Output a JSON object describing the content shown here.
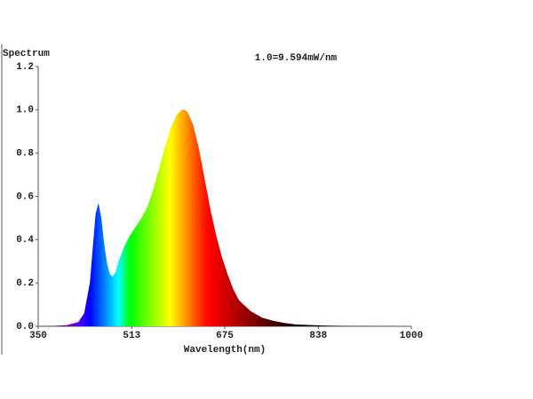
{
  "chart_data": {
    "type": "area",
    "title": "Spectrum",
    "annotation": "1.0=9.594mW/nm",
    "x_label": "Wavelength(nm)",
    "x": [
      350,
      380,
      400,
      420,
      430,
      440,
      445,
      450,
      455,
      460,
      465,
      470,
      475,
      480,
      485,
      490,
      500,
      510,
      520,
      530,
      540,
      550,
      560,
      570,
      580,
      590,
      600,
      605,
      610,
      620,
      630,
      640,
      650,
      660,
      670,
      680,
      690,
      700,
      720,
      740,
      760,
      780,
      800,
      850,
      900,
      1000
    ],
    "values": [
      0,
      0.002,
      0.005,
      0.02,
      0.06,
      0.2,
      0.36,
      0.52,
      0.57,
      0.5,
      0.38,
      0.29,
      0.24,
      0.23,
      0.25,
      0.3,
      0.37,
      0.42,
      0.46,
      0.5,
      0.55,
      0.63,
      0.72,
      0.82,
      0.91,
      0.97,
      1.0,
      1.0,
      0.99,
      0.93,
      0.82,
      0.68,
      0.54,
      0.42,
      0.32,
      0.24,
      0.17,
      0.12,
      0.07,
      0.04,
      0.025,
      0.015,
      0.008,
      0.003,
      0.001,
      0
    ],
    "xlim": [
      350,
      1000
    ],
    "xticks": [
      350,
      513,
      675,
      838,
      1000
    ],
    "ylim": [
      0,
      1.2
    ],
    "yticks": [
      {
        "value": 0,
        "label": "0.0"
      },
      0.2,
      0.4,
      0.6,
      0.8,
      {
        "value": 1,
        "label": "1.0"
      },
      1.2
    ],
    "fill": "wavelength-spectrum",
    "grid": false
  }
}
